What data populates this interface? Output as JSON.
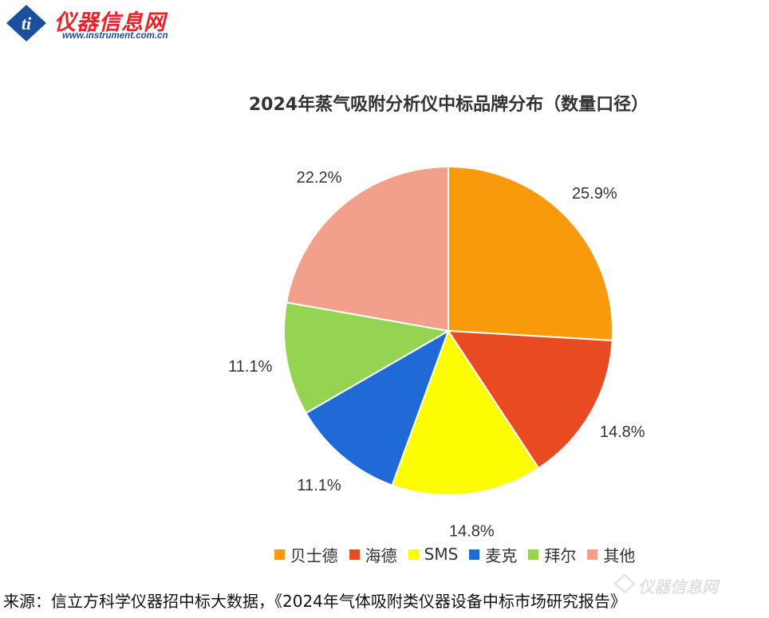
{
  "logo": {
    "name": "仪器信息网",
    "url": "www.instrument.com.cn",
    "brand_red": "#e8232a",
    "brand_blue": "#1b4f9c"
  },
  "chart_data": {
    "type": "pie",
    "title": "2024年蒸气吸附分析仪中标品牌分布（数量口径）",
    "categories": [
      "贝士德",
      "海德",
      "SMS",
      "麦克",
      "拜尔",
      "其他"
    ],
    "values": [
      25.9,
      14.8,
      14.8,
      11.1,
      11.1,
      22.2
    ],
    "labels": [
      "25.9%",
      "14.8%",
      "14.8%",
      "11.1%",
      "11.1%",
      "22.2%"
    ],
    "colors": [
      "#f99a0c",
      "#e84a22",
      "#fcfc02",
      "#1f6ad6",
      "#94d452",
      "#f2a08c"
    ],
    "legend_position": "bottom",
    "start": "12 o'clock",
    "direction": "clockwise"
  },
  "source": "来源：信立方科学仪器招中标大数据，《2024年气体吸附类仪器设备中标市场研究报告》",
  "watermark": {
    "text": "仪器信息网"
  }
}
